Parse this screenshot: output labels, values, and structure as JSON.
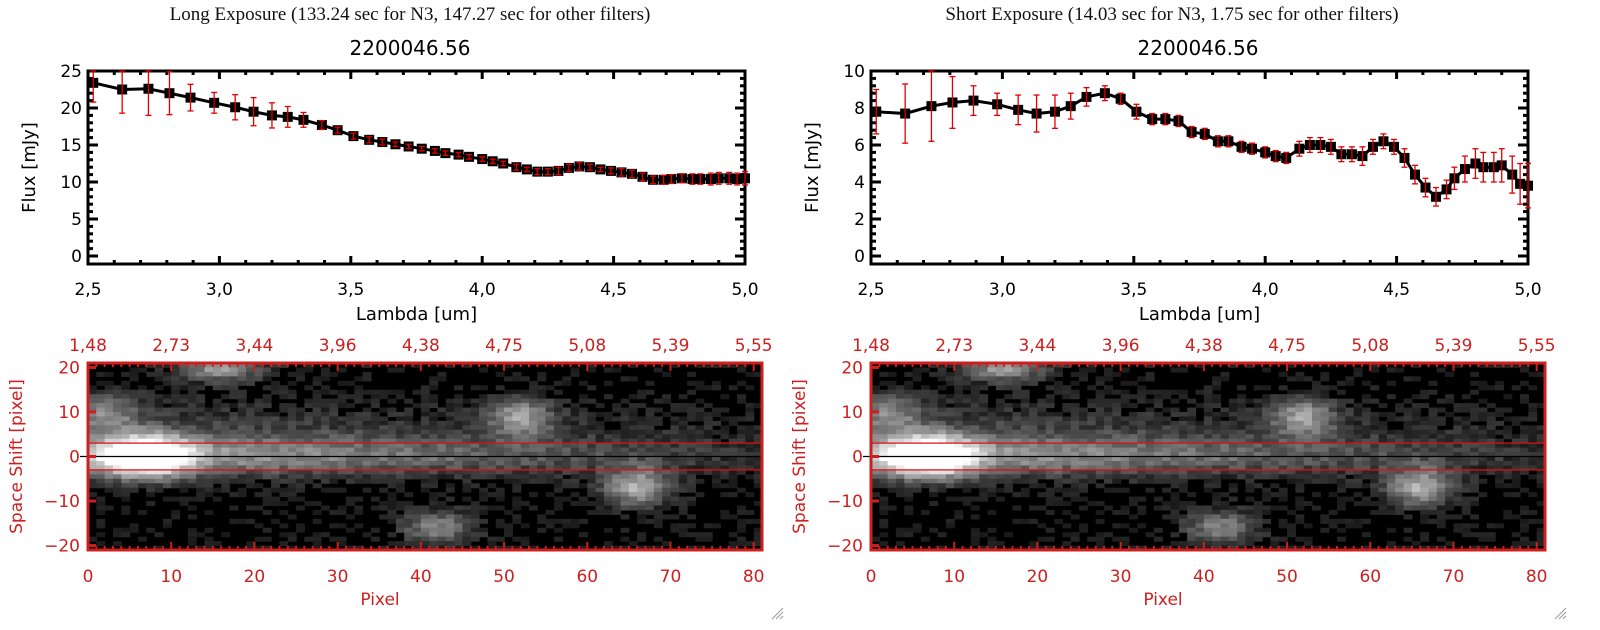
{
  "panels": [
    {
      "title": "Long Exposure (133.24 sec for N3, 147.27 sec for other filters)",
      "subtitle": "2200046.56"
    },
    {
      "title": "Short Exposure (14.03 sec for N3, 1.75 sec for other filters)",
      "subtitle": "2200046.56"
    }
  ],
  "colors": {
    "spectrum_line": "#000000",
    "error_bar": "#e00000",
    "image_axis": "#cc2020",
    "aperture_line": "#dd1010",
    "center_line": "#000000"
  },
  "chart_data": [
    {
      "type": "line",
      "name": "long-exposure-spectrum",
      "title": "2200046.56",
      "xlabel": "Lambda [um]",
      "ylabel": "Flux [mJy]",
      "xlim": [
        2.5,
        5.0
      ],
      "ylim": [
        -1,
        26
      ],
      "xticks": [
        "2.5",
        "3.0",
        "3.5",
        "4.0",
        "4.5",
        "5.0"
      ],
      "xtick_values": [
        2.5,
        3.0,
        3.5,
        4.0,
        4.5,
        5.0
      ],
      "yticks": [
        "0",
        "5",
        "10",
        "15",
        "20",
        "25"
      ],
      "ytick_values": [
        0,
        5,
        10,
        15,
        20,
        25
      ],
      "series": [
        {
          "name": "flux",
          "x": [
            2.52,
            2.63,
            2.73,
            2.81,
            2.89,
            2.98,
            3.06,
            3.13,
            3.2,
            3.26,
            3.32,
            3.39,
            3.45,
            3.51,
            3.57,
            3.62,
            3.67,
            3.72,
            3.77,
            3.82,
            3.86,
            3.91,
            3.95,
            4.0,
            4.04,
            4.08,
            4.13,
            4.17,
            4.21,
            4.25,
            4.29,
            4.33,
            4.37,
            4.41,
            4.45,
            4.49,
            4.53,
            4.57,
            4.61,
            4.65,
            4.69,
            4.72,
            4.76,
            4.8,
            4.83,
            4.87,
            4.9,
            4.94,
            4.97,
            5.0
          ],
          "y": [
            23.4,
            22.5,
            22.6,
            22.0,
            21.4,
            20.7,
            20.1,
            19.5,
            19.0,
            18.8,
            18.4,
            17.7,
            17.0,
            16.2,
            15.7,
            15.4,
            15.1,
            14.8,
            14.5,
            14.2,
            13.9,
            13.7,
            13.4,
            13.1,
            12.8,
            12.5,
            12.0,
            11.7,
            11.4,
            11.4,
            11.5,
            11.9,
            12.1,
            12.0,
            11.7,
            11.5,
            11.3,
            11.1,
            10.7,
            10.3,
            10.3,
            10.4,
            10.5,
            10.4,
            10.4,
            10.4,
            10.5,
            10.5,
            10.4,
            10.5
          ],
          "yerr": [
            2.6,
            3.2,
            3.6,
            2.9,
            1.8,
            1.4,
            1.7,
            1.9,
            1.7,
            1.4,
            1.0,
            0.6,
            0.4,
            0.4,
            0.4,
            0.4,
            0.3,
            0.3,
            0.3,
            0.3,
            0.3,
            0.3,
            0.3,
            0.3,
            0.3,
            0.3,
            0.4,
            0.3,
            0.4,
            0.4,
            0.5,
            0.5,
            0.5,
            0.4,
            0.3,
            0.4,
            0.5,
            0.5,
            0.5,
            0.5,
            0.6,
            0.6,
            0.6,
            0.7,
            0.7,
            0.8,
            0.8,
            0.8,
            0.8,
            0.9
          ]
        }
      ]
    },
    {
      "type": "line",
      "name": "short-exposure-spectrum",
      "title": "2200046.56",
      "xlabel": "Lambda [um]",
      "ylabel": "Flux [mJy]",
      "xlim": [
        2.5,
        5.0
      ],
      "ylim": [
        -0.4,
        10.4
      ],
      "xticks": [
        "2.5",
        "3.0",
        "3.5",
        "4.0",
        "4.5",
        "5.0"
      ],
      "xtick_values": [
        2.5,
        3.0,
        3.5,
        4.0,
        4.5,
        5.0
      ],
      "yticks": [
        "0",
        "2",
        "4",
        "6",
        "8",
        "10"
      ],
      "ytick_values": [
        0,
        2,
        4,
        6,
        8,
        10
      ],
      "series": [
        {
          "name": "flux",
          "x": [
            2.52,
            2.63,
            2.73,
            2.81,
            2.89,
            2.98,
            3.06,
            3.13,
            3.2,
            3.26,
            3.32,
            3.39,
            3.45,
            3.51,
            3.57,
            3.62,
            3.67,
            3.72,
            3.77,
            3.82,
            3.86,
            3.91,
            3.95,
            4.0,
            4.04,
            4.08,
            4.13,
            4.17,
            4.21,
            4.25,
            4.29,
            4.33,
            4.37,
            4.41,
            4.45,
            4.49,
            4.53,
            4.57,
            4.61,
            4.65,
            4.69,
            4.72,
            4.76,
            4.8,
            4.83,
            4.87,
            4.9,
            4.94,
            4.97,
            5.0
          ],
          "y": [
            7.8,
            7.7,
            8.1,
            8.3,
            8.4,
            8.2,
            7.9,
            7.7,
            7.8,
            8.1,
            8.6,
            8.8,
            8.5,
            7.8,
            7.4,
            7.4,
            7.3,
            6.7,
            6.6,
            6.2,
            6.2,
            5.9,
            5.8,
            5.6,
            5.4,
            5.3,
            5.8,
            6.0,
            6.0,
            5.9,
            5.5,
            5.5,
            5.4,
            5.9,
            6.2,
            5.9,
            5.3,
            4.4,
            3.7,
            3.2,
            3.6,
            4.2,
            4.7,
            5.0,
            4.8,
            4.8,
            4.9,
            4.4,
            3.9,
            3.8
          ],
          "yerr": [
            1.2,
            1.6,
            1.9,
            1.4,
            0.8,
            0.6,
            0.8,
            1.0,
            0.9,
            0.7,
            0.5,
            0.4,
            0.3,
            0.4,
            0.3,
            0.3,
            0.3,
            0.3,
            0.3,
            0.3,
            0.3,
            0.3,
            0.3,
            0.3,
            0.3,
            0.3,
            0.4,
            0.4,
            0.4,
            0.4,
            0.4,
            0.4,
            0.5,
            0.4,
            0.4,
            0.4,
            0.5,
            0.5,
            0.5,
            0.5,
            0.5,
            0.6,
            0.7,
            0.8,
            0.8,
            0.8,
            0.9,
            1.0,
            1.1,
            1.2
          ]
        }
      ]
    },
    {
      "type": "heatmap",
      "name": "long-exposure-image",
      "xlabel": "Pixel",
      "ylabel": "Space Shift [pixel]",
      "xlim": [
        0,
        81
      ],
      "ylim": [
        -21,
        21
      ],
      "xticks": [
        "0",
        "10",
        "20",
        "30",
        "40",
        "50",
        "60",
        "70",
        "80"
      ],
      "xtick_values": [
        0,
        10,
        20,
        30,
        40,
        50,
        60,
        70,
        80
      ],
      "yticks": [
        "-20",
        "-10",
        "0",
        "10",
        "20"
      ],
      "ytick_values": [
        -20,
        -10,
        0,
        10,
        20
      ],
      "top_ticks": [
        "1.48",
        "2.73",
        "3.44",
        "3.96",
        "4.38",
        "4.75",
        "5.08",
        "5.39",
        "5.55"
      ],
      "aperture": [
        -3,
        3
      ],
      "center": 0,
      "sources": [
        {
          "x": 7,
          "y": 0,
          "brightness": 1.0,
          "sx": 3.5,
          "sy": 3.2
        },
        {
          "x": 16,
          "y": 20,
          "brightness": 0.55,
          "sx": 3.5,
          "sy": 2.2
        },
        {
          "x": 52,
          "y": 9,
          "brightness": 0.5,
          "sx": 2.8,
          "sy": 3.0
        },
        {
          "x": 66,
          "y": -7,
          "brightness": 0.6,
          "sx": 3.0,
          "sy": 3.0
        },
        {
          "x": 42,
          "y": -16,
          "brightness": 0.45,
          "sx": 3.0,
          "sy": 2.8
        },
        {
          "x": 2,
          "y": 10,
          "brightness": 0.35,
          "sx": 3.0,
          "sy": 3.0
        }
      ]
    },
    {
      "type": "heatmap",
      "name": "short-exposure-image",
      "xlabel": "Pixel",
      "ylabel": "Space Shift [pixel]",
      "xlim": [
        0,
        81
      ],
      "ylim": [
        -21,
        21
      ],
      "xticks": [
        "0",
        "10",
        "20",
        "30",
        "40",
        "50",
        "60",
        "70",
        "80"
      ],
      "xtick_values": [
        0,
        10,
        20,
        30,
        40,
        50,
        60,
        70,
        80
      ],
      "yticks": [
        "-20",
        "-10",
        "0",
        "10",
        "20"
      ],
      "ytick_values": [
        -20,
        -10,
        0,
        10,
        20
      ],
      "top_ticks": [
        "1.48",
        "2.73",
        "3.44",
        "3.96",
        "4.38",
        "4.75",
        "5.08",
        "5.39",
        "5.55"
      ],
      "aperture": [
        -3,
        3
      ],
      "center": 0,
      "sources": [
        {
          "x": 7,
          "y": 0,
          "brightness": 1.0,
          "sx": 3.5,
          "sy": 3.2
        },
        {
          "x": 16,
          "y": 20,
          "brightness": 0.55,
          "sx": 3.5,
          "sy": 2.2
        },
        {
          "x": 52,
          "y": 9,
          "brightness": 0.5,
          "sx": 2.8,
          "sy": 3.0
        },
        {
          "x": 66,
          "y": -7,
          "brightness": 0.6,
          "sx": 3.0,
          "sy": 3.0
        },
        {
          "x": 42,
          "y": -16,
          "brightness": 0.45,
          "sx": 3.0,
          "sy": 2.8
        },
        {
          "x": 2,
          "y": 10,
          "brightness": 0.35,
          "sx": 3.0,
          "sy": 3.0
        }
      ]
    }
  ]
}
